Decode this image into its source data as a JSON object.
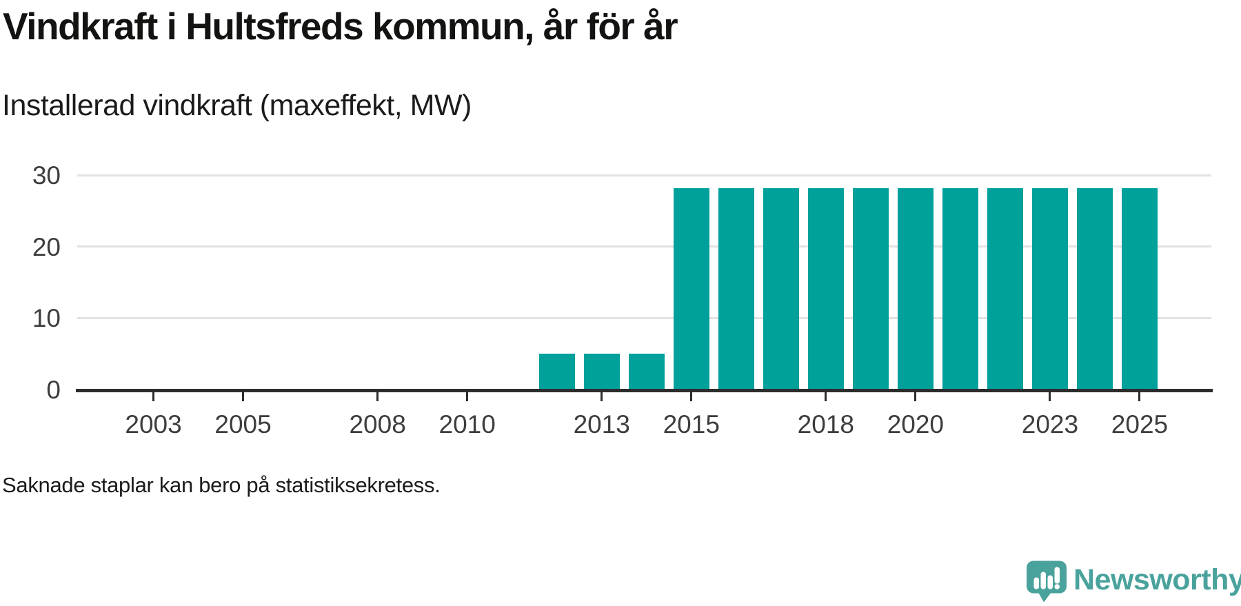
{
  "header": {
    "title": "Vindkraft i Hultsfreds kommun, år för år",
    "subtitle": "Installerad vindkraft (maxeffekt, MW)"
  },
  "chart_data": {
    "type": "bar",
    "title": "Vindkraft i Hultsfreds kommun, år för år",
    "subtitle": "Installerad vindkraft (maxeffekt, MW)",
    "unit": "MW",
    "ylabel": "",
    "xlabel": "",
    "ylim": [
      0,
      30
    ],
    "x_range": [
      2001.3,
      2026.6
    ],
    "y_ticks": [
      0,
      10,
      20,
      30
    ],
    "x_tick_years": [
      2003,
      2005,
      2008,
      2010,
      2013,
      2015,
      2018,
      2020,
      2023,
      2025
    ],
    "grid": "horizontal",
    "legend": "none",
    "bar_color": "#00a09b",
    "grid_color": "#e2e2e2",
    "axis_color": "#2d2d2d",
    "tick_label_color": "#3d3d3d",
    "series": [
      {
        "year": 2012,
        "value": 5
      },
      {
        "year": 2013,
        "value": 5
      },
      {
        "year": 2014,
        "value": 5
      },
      {
        "year": 2015,
        "value": 28.2
      },
      {
        "year": 2016,
        "value": 28.2
      },
      {
        "year": 2017,
        "value": 28.2
      },
      {
        "year": 2018,
        "value": 28.2
      },
      {
        "year": 2019,
        "value": 28.2
      },
      {
        "year": 2020,
        "value": 28.2
      },
      {
        "year": 2021,
        "value": 28.2
      },
      {
        "year": 2022,
        "value": 28.2
      },
      {
        "year": 2023,
        "value": 28.2
      },
      {
        "year": 2024,
        "value": 28.2
      },
      {
        "year": 2025,
        "value": 28.2
      }
    ],
    "note": "Saknade staplar kan bero på statistiksekretess."
  },
  "footer": {
    "note": "Saknade staplar kan bero på statistiksekretess."
  },
  "brand": {
    "name": "Newsworthy",
    "color": "#4aa29c",
    "icon": "newsworthy-speech-bubble-bar-chart-icon"
  }
}
